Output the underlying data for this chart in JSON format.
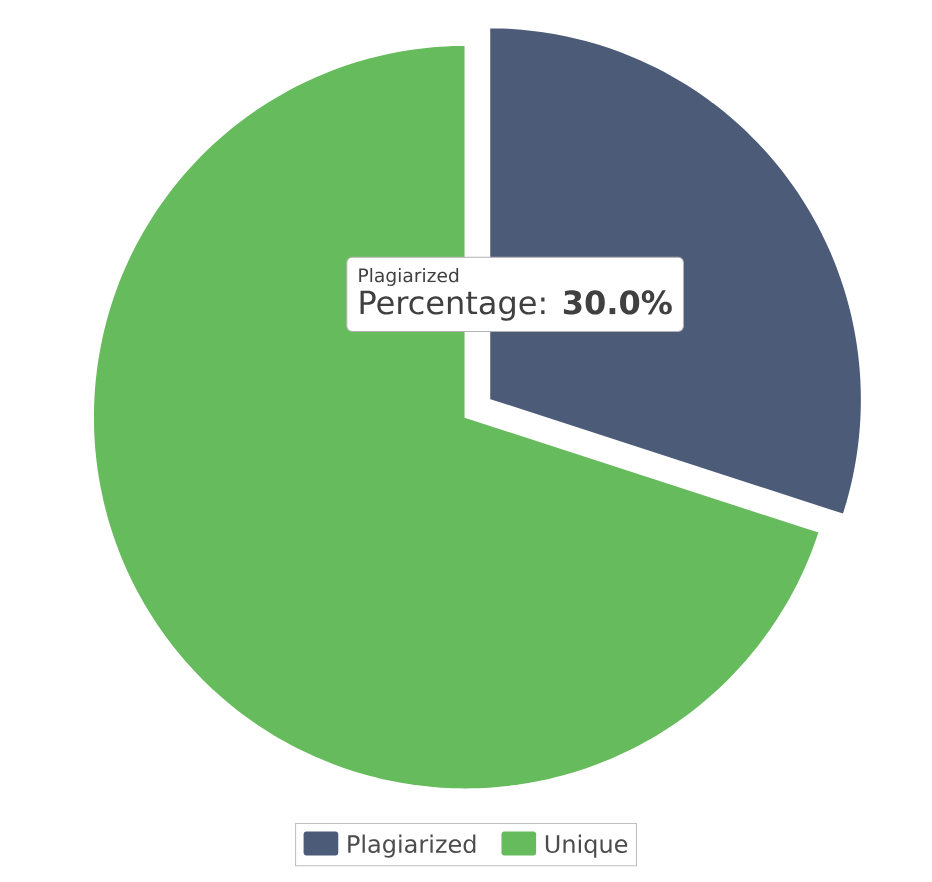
{
  "chart_data": {
    "type": "pie",
    "categories": [
      "Plagiarized",
      "Unique"
    ],
    "values": [
      30,
      70
    ],
    "colors": [
      "#4c5b78",
      "#66bb5c"
    ],
    "annotations": [
      "Plagiarized",
      "Percentage: **30.0%**"
    ],
    "legend": "bottom"
  }
}
